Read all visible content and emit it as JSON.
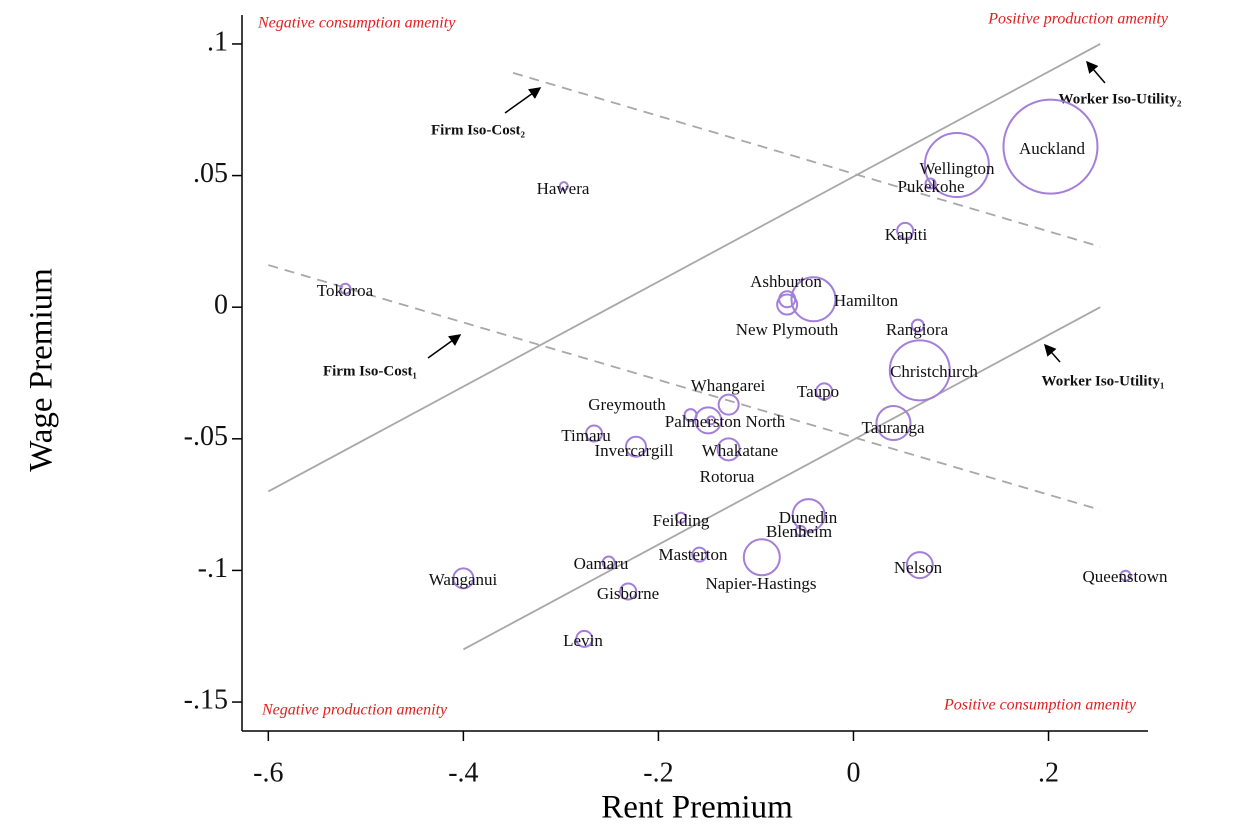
{
  "chart_data": {
    "type": "scatter",
    "xlabel": "Rent Premium",
    "ylabel": "Wage Premium",
    "xlim": [
      -0.627,
      0.302
    ],
    "ylim": [
      -0.161,
      0.111
    ],
    "xticks": [
      {
        "value": -0.6,
        "label": "-.6"
      },
      {
        "value": -0.4,
        "label": "-.4"
      },
      {
        "value": -0.2,
        "label": "-.2"
      },
      0,
      {
        "value": 0.2,
        "label": ".2"
      }
    ],
    "yticks": [
      {
        "value": 0.1,
        "label": ".1"
      },
      {
        "value": 0.05,
        "label": ".05"
      },
      0,
      {
        "value": -0.05,
        "label": "-.05"
      },
      {
        "value": -0.1,
        "label": "-.1"
      },
      {
        "value": -0.15,
        "label": "-.15"
      }
    ],
    "marker_color": "#a47fd9",
    "labels": [
      "Auckland",
      "Wellington",
      "Pukekohe",
      "Kapiti",
      "Hawera",
      "Tokoroa",
      "Ashburton",
      "Hamilton",
      "New Plymouth",
      "Rangiora",
      "Christchurch",
      "Taupo",
      "Whangarei",
      "Greymouth",
      "Palmerston North",
      "Tauranga",
      "Timaru",
      "Invercargill",
      "Whakatane",
      "Rotorua",
      "Dunedin",
      "Blenheim",
      "Feilding",
      "Masterton",
      "Napier-Hastings",
      "Oamaru",
      "Nelson",
      "Queenstown",
      "Wanganui",
      "Gisborne",
      "Levin"
    ],
    "x": [
      0.202,
      0.106,
      0.079,
      0.053,
      -0.297,
      -0.521,
      -0.068,
      -0.041,
      -0.068,
      0.066,
      0.068,
      -0.03,
      -0.128,
      -0.167,
      -0.149,
      0.041,
      -0.266,
      -0.223,
      -0.146,
      -0.128,
      -0.046,
      -0.054,
      -0.177,
      -0.158,
      -0.094,
      -0.251,
      0.068,
      0.279,
      -0.4,
      -0.231,
      -0.276
    ],
    "y": [
      0.061,
      0.054,
      0.047,
      0.029,
      0.046,
      0.007,
      0.003,
      0.003,
      0.001,
      -0.007,
      -0.024,
      -0.032,
      -0.037,
      -0.041,
      -0.043,
      -0.044,
      -0.048,
      -0.053,
      -0.043,
      -0.054,
      -0.079,
      -0.085,
      -0.08,
      -0.094,
      -0.095,
      -0.097,
      -0.098,
      -0.102,
      -0.103,
      -0.108,
      -0.126
    ],
    "sizes": [
      47,
      32,
      5,
      8,
      4,
      5,
      8,
      22,
      10,
      6,
      30,
      8,
      10,
      6,
      13,
      17,
      8,
      10,
      4,
      11,
      16,
      5,
      5,
      7,
      18,
      6,
      13,
      5,
      10,
      8,
      8
    ],
    "lines": [
      {
        "name": "Worker Iso-Utility₂",
        "style": "solid",
        "x": [
          -0.6,
          0.253
        ],
        "y": [
          -0.07,
          0.1
        ]
      },
      {
        "name": "Worker Iso-Utility₁",
        "style": "solid",
        "x": [
          -0.4,
          0.253
        ],
        "y": [
          -0.13,
          0
        ]
      },
      {
        "name": "Firm Iso-Cost₂",
        "style": "dashed",
        "x": [
          -0.349,
          0.253
        ],
        "y": [
          0.089,
          0.023
        ]
      },
      {
        "name": "Firm Iso-Cost₁",
        "style": "dashed",
        "x": [
          -0.6,
          0.253
        ],
        "y": [
          0.016,
          -0.077
        ]
      }
    ],
    "annotations": [
      "Negative consumption amenity",
      "Positive production amenity",
      "Negative production amenity",
      "Positive consumption amenity"
    ]
  }
}
